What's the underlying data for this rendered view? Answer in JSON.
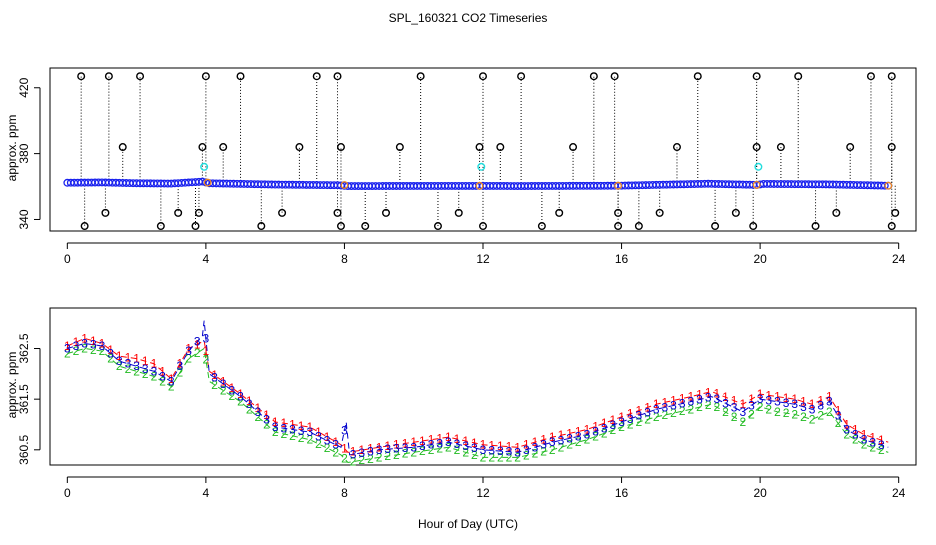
{
  "chart_data": {
    "title": "SPL_160321  CO2 Timeseries",
    "xlabel": "Hour of Day (UTC)",
    "panels": [
      {
        "type": "scatter",
        "ylabel": "approx. ppm",
        "xlim": [
          -0.5,
          24.5
        ],
        "ylim": [
          333,
          432
        ],
        "xticks": [
          0,
          4,
          8,
          12,
          16,
          20,
          24
        ],
        "yticks": [
          340,
          380,
          420
        ],
        "yticklabels": [
          "340",
          "380",
          "420"
        ],
        "baseline": [
          [
            0,
            362.3
          ],
          [
            1,
            362.5
          ],
          [
            2,
            362.0
          ],
          [
            3,
            361.8
          ],
          [
            3.9,
            363.0
          ],
          [
            4.1,
            362.0
          ],
          [
            6,
            361.2
          ],
          [
            7.8,
            360.8
          ],
          [
            8.1,
            360.3
          ],
          [
            12,
            360.4
          ],
          [
            13,
            360.3
          ],
          [
            15.9,
            360.5
          ],
          [
            18.5,
            361.7
          ],
          [
            19.9,
            361.0
          ],
          [
            20.1,
            361.6
          ],
          [
            22,
            361.3
          ],
          [
            23.7,
            360.5
          ]
        ],
        "highs": [
          0.4,
          1.2,
          2.1,
          4.0,
          5.0,
          7.2,
          7.8,
          10.2,
          12.0,
          13.1,
          15.2,
          15.8,
          18.2,
          19.9,
          21.1,
          23.2,
          23.8
        ],
        "lows": [
          0.5,
          2.7,
          3.7,
          5.6,
          7.9,
          8.6,
          10.7,
          12.0,
          13.7,
          15.9,
          16.5,
          18.7,
          19.8,
          21.6,
          23.8
        ],
        "mid_high": [
          1.6,
          3.9,
          4.5,
          6.7,
          7.9,
          9.6,
          11.9,
          12.5,
          14.6,
          17.6,
          19.9,
          20.6,
          22.6,
          23.8
        ],
        "mid_low": [
          1.1,
          3.2,
          3.8,
          6.2,
          7.8,
          9.2,
          11.3,
          14.2,
          15.9,
          17.1,
          19.3,
          22.2,
          23.9
        ],
        "outlier_cyan": [
          [
            3.95,
            372
          ],
          [
            11.95,
            372
          ],
          [
            19.95,
            372
          ]
        ]
      },
      {
        "type": "line",
        "ylabel": "approx. ppm",
        "xlim": [
          -0.5,
          24.5
        ],
        "ylim": [
          360.2,
          363.3
        ],
        "xticks": [
          0,
          4,
          8,
          12,
          16,
          20,
          24
        ],
        "yticks": [
          360.5,
          361.5,
          362.5
        ],
        "yticklabels": [
          "360.5",
          "361.5",
          "362.5"
        ],
        "series": [
          {
            "name": "1",
            "color": "#ff0000",
            "x": [
              0,
              0.5,
              1,
              1.5,
              2,
              2.5,
              3,
              3.5,
              3.95,
              4.1,
              5,
              6,
              7,
              7.9,
              8.1,
              9,
              10,
              11,
              12,
              13,
              14,
              15,
              16,
              17,
              18,
              18.6,
              19.5,
              20,
              20.5,
              21,
              21.5,
              22,
              22.5,
              23,
              23.7
            ],
            "y": [
              362.55,
              362.7,
              362.6,
              362.35,
              362.3,
              362.2,
              361.9,
              362.5,
              362.65,
              362.05,
              361.6,
              361.05,
              360.95,
              360.6,
              360.45,
              360.55,
              360.65,
              360.75,
              360.6,
              360.55,
              360.75,
              360.9,
              361.15,
              361.4,
              361.55,
              361.65,
              361.4,
              361.6,
              361.55,
              361.5,
              361.4,
              361.55,
              361.0,
              360.8,
              360.65
            ]
          },
          {
            "name": "2",
            "color": "#22bb22",
            "x": [
              0,
              0.5,
              1,
              1.5,
              2,
              2.5,
              3,
              3.5,
              3.95,
              4.1,
              5,
              6,
              7,
              7.9,
              8.1,
              9,
              10,
              11,
              12,
              13,
              14,
              15,
              16,
              17,
              18,
              18.6,
              19.5,
              20,
              20.5,
              21,
              21.5,
              22,
              22.5,
              23,
              23.7
            ],
            "y": [
              362.4,
              362.5,
              362.45,
              362.15,
              362.05,
              361.95,
              361.75,
              362.3,
              362.5,
              361.85,
              361.45,
              360.85,
              360.7,
              360.4,
              360.25,
              360.35,
              360.45,
              360.55,
              360.35,
              360.35,
              360.5,
              360.7,
              360.95,
              361.15,
              361.3,
              361.4,
              361.05,
              361.35,
              361.25,
              361.2,
              361.1,
              361.25,
              360.8,
              360.6,
              360.45
            ]
          },
          {
            "name": "3",
            "color": "#0000cc",
            "x": [
              0,
              0.5,
              1,
              1.5,
              2,
              2.5,
              3,
              3.5,
              3.9,
              3.95,
              4.1,
              5,
              6,
              7,
              7.9,
              8.05,
              8.15,
              9,
              10,
              11,
              12,
              13,
              14,
              15,
              16,
              17,
              18,
              18.6,
              19.5,
              20,
              20.5,
              21,
              21.5,
              22,
              22.5,
              23,
              23.7
            ],
            "y": [
              362.5,
              362.6,
              362.55,
              362.25,
              362.15,
              362.05,
              361.85,
              362.45,
              362.75,
              363.05,
              362.0,
              361.55,
              360.95,
              360.85,
              360.55,
              361.05,
              360.4,
              360.5,
              360.55,
              360.65,
              360.5,
              360.45,
              360.65,
              360.8,
              361.05,
              361.3,
              361.45,
              361.55,
              361.25,
              361.5,
              361.45,
              361.4,
              361.3,
              361.45,
              360.9,
              360.7,
              360.55
            ]
          }
        ]
      }
    ]
  }
}
